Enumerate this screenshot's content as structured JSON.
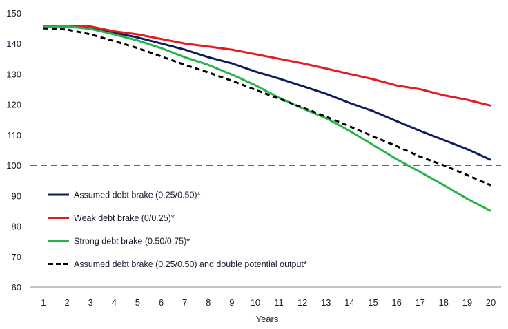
{
  "chart_data": {
    "type": "line",
    "title": "",
    "xlabel": "Years",
    "ylabel": "",
    "x": [
      1,
      2,
      3,
      4,
      5,
      6,
      7,
      8,
      9,
      10,
      11,
      12,
      13,
      14,
      15,
      16,
      17,
      18,
      19,
      20
    ],
    "xlim": [
      1,
      20
    ],
    "ylim": [
      60,
      150
    ],
    "yticks": [
      60,
      70,
      80,
      90,
      100,
      110,
      120,
      130,
      140,
      150
    ],
    "grid": false,
    "legend_position": "bottom-left",
    "reference_line": {
      "y": 100,
      "style": "dashed",
      "color": "#333333"
    },
    "series": [
      {
        "name": "Assumed debt brake (0.25/0.50)*",
        "color": "#0f1c5c",
        "style": "solid",
        "values": [
          145.5,
          145.7,
          145.0,
          143.5,
          142.0,
          140.0,
          138.0,
          135.5,
          133.5,
          130.8,
          128.5,
          126.0,
          123.5,
          120.5,
          117.8,
          114.5,
          111.3,
          108.3,
          105.3,
          101.8
        ]
      },
      {
        "name": "Weak debt brake (0/0.25)*",
        "color": "#e31b23",
        "style": "solid",
        "values": [
          145.6,
          145.8,
          145.6,
          144.0,
          143.0,
          141.5,
          140.0,
          139.0,
          138.0,
          136.5,
          135.0,
          133.5,
          131.8,
          130.0,
          128.3,
          126.2,
          125.0,
          123.0,
          121.5,
          119.6
        ]
      },
      {
        "name": "Strong debt brake (0.50/0.75)*",
        "color": "#27b34b",
        "style": "solid",
        "values": [
          145.5,
          145.6,
          144.8,
          143.0,
          141.0,
          138.5,
          135.5,
          133.0,
          129.8,
          126.3,
          122.2,
          118.7,
          115.5,
          111.3,
          106.7,
          102.0,
          97.8,
          93.5,
          89.0,
          85.0
        ]
      },
      {
        "name": "Assumed debt brake (0.25/0.50) and double potential output*",
        "color": "#000000",
        "style": "dashed",
        "values": [
          145.0,
          144.6,
          143.0,
          140.8,
          138.5,
          135.8,
          133.0,
          130.5,
          127.8,
          124.8,
          121.9,
          119.0,
          116.0,
          112.8,
          109.5,
          106.3,
          102.8,
          100.0,
          96.8,
          93.4
        ]
      }
    ]
  }
}
